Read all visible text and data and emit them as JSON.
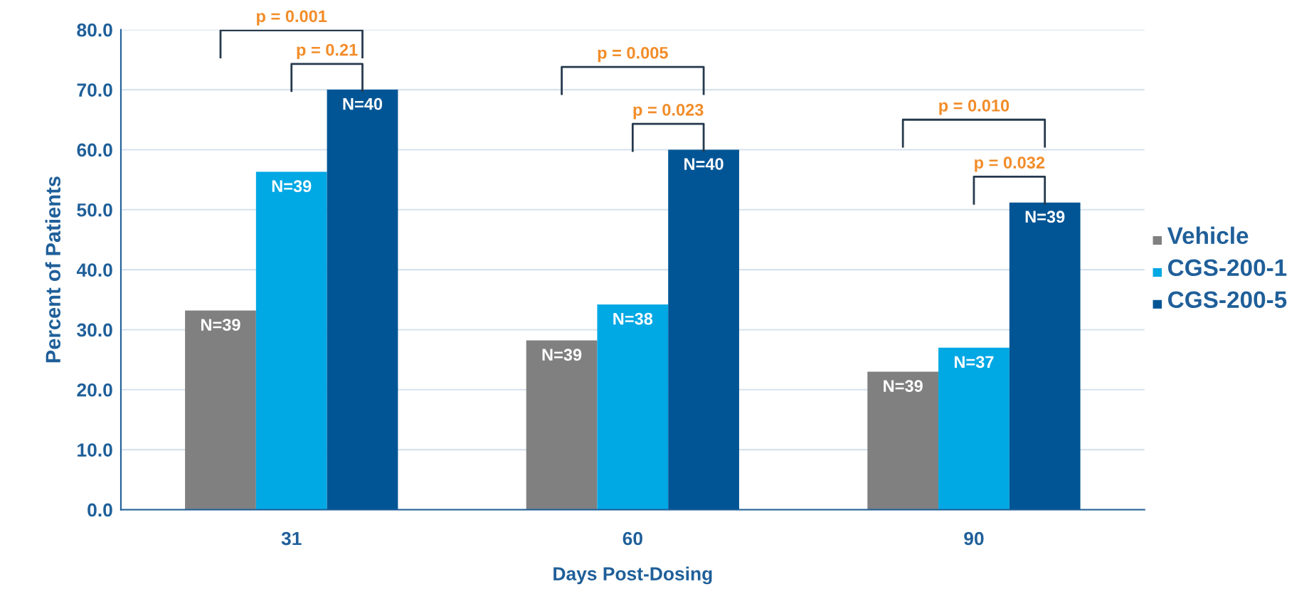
{
  "chart_data": {
    "type": "bar",
    "xlabel": "Days Post-Dosing",
    "ylabel": "Percent of Patients",
    "categories": [
      "31",
      "60",
      "90"
    ],
    "series": [
      {
        "name": "Vehicle",
        "color": "#808080",
        "values": [
          33.2,
          28.2,
          23.0
        ]
      },
      {
        "name": "CGS-200-1",
        "color": "#00a8e4",
        "values": [
          56.3,
          34.2,
          27.0
        ]
      },
      {
        "name": "CGS-200-5",
        "color": "#015595",
        "values": [
          70.0,
          60.0,
          51.2
        ]
      }
    ],
    "ylim": [
      0,
      80
    ],
    "yticks": [
      {
        "value": 0,
        "label": "0.0"
      },
      {
        "value": 10,
        "label": "10.0"
      },
      {
        "value": 20,
        "label": "20.0"
      },
      {
        "value": 30,
        "label": "30.0"
      },
      {
        "value": 40,
        "label": "40.0"
      },
      {
        "value": 50,
        "label": "50.0"
      },
      {
        "value": 60,
        "label": "60.0"
      },
      {
        "value": 70,
        "label": "70.0"
      },
      {
        "value": 80,
        "label": "80.0"
      }
    ],
    "grid": "y",
    "legend": "right",
    "annotations": [
      "N=39",
      "N=39",
      "N=40",
      "N=39",
      "N=38",
      "N=40",
      "N=39",
      "N=37",
      "N=39",
      "p = 0.001",
      "p = 0.21",
      "p = 0.005",
      "p = 0.023",
      "p = 0.010",
      "p = 0.032"
    ]
  }
}
